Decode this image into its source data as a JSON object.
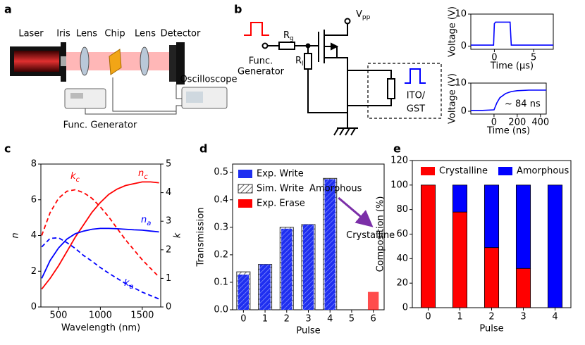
{
  "panel_labels": [
    "a",
    "b",
    "c",
    "d",
    "e"
  ],
  "diagram_a": {
    "labels": [
      "Laser",
      "Iris",
      "Lens",
      "Chip",
      "Lens",
      "Detector",
      "Oscilloscope",
      "Func. Generator"
    ]
  },
  "diagram_b": {
    "source_lines": [
      "Func.",
      "Generator"
    ],
    "gate_resistor": {
      "main": "R",
      "sub": "g"
    },
    "load_resistor": {
      "main": "R",
      "sub": "l"
    },
    "supply": {
      "main": "V",
      "sub": "pp"
    },
    "device_lines": [
      "ITO/",
      "GST"
    ]
  },
  "chart_data": [
    {
      "type": "line",
      "xlabel": "Time (μs)",
      "ylabel": "Voltage (V)",
      "color": "#0000ff",
      "x": [
        -3,
        -0.1,
        0,
        0.15,
        2,
        2.15,
        7.5
      ],
      "values": [
        0.3,
        0.3,
        7,
        7.5,
        7.5,
        0.3,
        0.3
      ],
      "xlim": [
        -3,
        7.5
      ],
      "xticks": [
        0,
        5
      ],
      "ylim": [
        -1,
        10
      ],
      "yticks": [
        0,
        10
      ]
    },
    {
      "type": "line",
      "xlabel": "Time (ns)",
      "ylabel": "Voltage (V)",
      "color": "#0000ff",
      "annotation": "~ 84 ns",
      "x": [
        -200,
        -100,
        0,
        25,
        50,
        100,
        150,
        200,
        300,
        450
      ],
      "values": [
        0.3,
        0.3,
        0.5,
        3,
        4.8,
        6.3,
        7,
        7.3,
        7.5,
        7.5
      ],
      "xlim": [
        -200,
        450
      ],
      "xticks": [
        0,
        200,
        400
      ],
      "ylim": [
        -1,
        10
      ],
      "yticks": [
        0,
        10
      ]
    },
    {
      "type": "line",
      "xlabel": "Wavelength (nm)",
      "ylabel": "n",
      "y2label": "k",
      "x": [
        300,
        400,
        500,
        600,
        700,
        800,
        900,
        1000,
        1100,
        1200,
        1300,
        1400,
        1500,
        1600,
        1700
      ],
      "series": [
        {
          "name": "n",
          "subscript": "c",
          "color": "#ff0000",
          "style": "solid",
          "values": [
            1.0,
            1.6,
            2.3,
            3.1,
            3.9,
            4.6,
            5.3,
            5.85,
            6.3,
            6.6,
            6.8,
            6.9,
            7.0,
            7.0,
            6.95
          ]
        },
        {
          "name": "k",
          "subscript": "c",
          "color": "#ff0000",
          "style": "dashed",
          "axis": "y2",
          "values": [
            2.5,
            3.3,
            3.8,
            4.05,
            4.1,
            4.0,
            3.8,
            3.5,
            3.15,
            2.75,
            2.35,
            2.0,
            1.65,
            1.35,
            1.05
          ]
        },
        {
          "name": "n",
          "subscript": "a",
          "color": "#0000ff",
          "style": "solid",
          "values": [
            1.6,
            2.6,
            3.3,
            3.8,
            4.1,
            4.25,
            4.35,
            4.4,
            4.4,
            4.38,
            4.35,
            4.32,
            4.3,
            4.25,
            4.2
          ]
        },
        {
          "name": "k",
          "subscript": "a",
          "color": "#0000ff",
          "style": "dashed",
          "axis": "y2",
          "values": [
            2.1,
            2.4,
            2.42,
            2.25,
            2.05,
            1.8,
            1.6,
            1.38,
            1.18,
            1.0,
            0.82,
            0.67,
            0.52,
            0.4,
            0.28
          ]
        }
      ],
      "xlim": [
        290,
        1720
      ],
      "xticks": [
        500,
        1000,
        1500
      ],
      "ylim": [
        0,
        8
      ],
      "yticks": [
        0,
        2,
        4,
        6,
        8
      ],
      "y2lim": [
        0,
        5
      ],
      "y2ticks": [
        0,
        1,
        2,
        3,
        4,
        5
      ]
    },
    {
      "type": "bar",
      "xlabel": "Pulse",
      "ylabel": "Transmission",
      "legend": "upper left",
      "annotations": [
        "Amorphous",
        "Crystalline"
      ],
      "categories": [
        "0",
        "1",
        "2",
        "3",
        "4",
        "5",
        "6"
      ],
      "series": [
        {
          "name": "Exp. Write",
          "color": "#0000ff",
          "style": "hatched",
          "values": [
            0.128,
            0.165,
            0.295,
            0.31,
            0.475,
            null,
            null
          ]
        },
        {
          "name": "Sim. Write",
          "color": "#333333",
          "style": "outline",
          "values": [
            0.138,
            0.165,
            0.3,
            0.31,
            0.478,
            null,
            null
          ]
        },
        {
          "name": "Exp. Erase",
          "color": "#ff0000",
          "style": "solid",
          "values": [
            null,
            null,
            null,
            null,
            null,
            null,
            0.065
          ]
        }
      ],
      "ylim": [
        0,
        0.53
      ],
      "yticks": [
        {
          "value": 0,
          "label": "0.0"
        },
        0.1,
        0.2,
        0.3,
        0.4,
        0.5
      ]
    },
    {
      "type": "stacked_bar",
      "xlabel": "Pulse",
      "ylabel": "Composition (%)",
      "legend": "upper center",
      "categories": [
        "0",
        "1",
        "2",
        "3",
        "4"
      ],
      "series": [
        {
          "name": "Crystalline",
          "color": "#ff0000",
          "values": [
            100,
            78,
            49,
            32,
            0
          ]
        },
        {
          "name": "Amorphous",
          "color": "#0000ff",
          "values": [
            0,
            22,
            51,
            68,
            100
          ]
        }
      ],
      "ylim": [
        0,
        120
      ],
      "yticks": [
        0,
        20,
        40,
        60,
        80,
        100,
        120
      ]
    }
  ]
}
